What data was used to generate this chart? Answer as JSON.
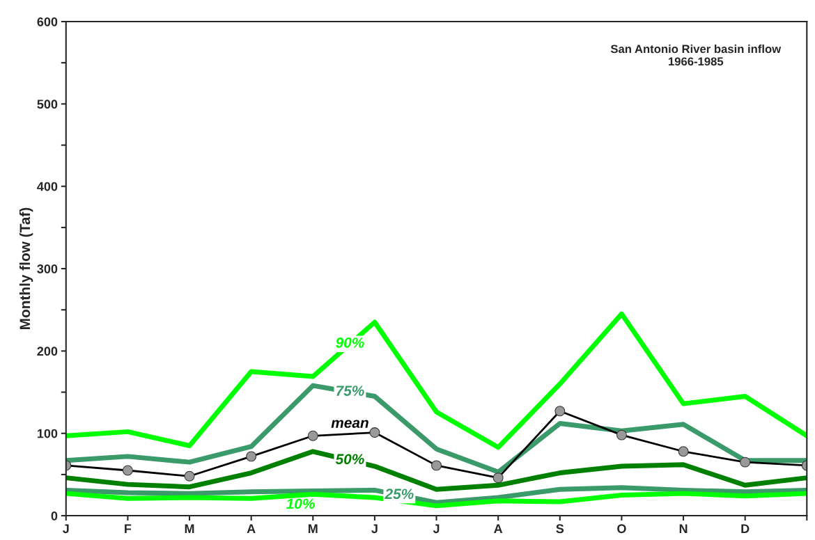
{
  "chart_data": {
    "type": "line",
    "title": "San Antonio River basin inflow\n1966-1985",
    "ylabel": "Monthly flow (Taf)",
    "categories": [
      "J",
      "F",
      "M",
      "A",
      "M",
      "J",
      "J",
      "A",
      "S",
      "O",
      "N",
      "D",
      null
    ],
    "series": [
      {
        "name": "90%",
        "color": "#00ff00",
        "marker": "none",
        "values": [
          97,
          102,
          85,
          175,
          169,
          235,
          126,
          83,
          160,
          245,
          136,
          145,
          97
        ]
      },
      {
        "name": "75%",
        "color": "#3a9a6a",
        "marker": "none",
        "values": [
          67,
          72,
          65,
          84,
          158,
          145,
          81,
          53,
          112,
          103,
          111,
          67,
          67
        ]
      },
      {
        "name": "mean",
        "color": "#000000",
        "marker": "circle",
        "values": [
          61,
          55,
          48,
          72,
          97,
          101,
          61,
          46,
          127,
          98,
          78,
          65,
          61
        ]
      },
      {
        "name": "50%",
        "color": "#008000",
        "marker": "none",
        "values": [
          46,
          38,
          35,
          52,
          78,
          60,
          32,
          37,
          52,
          60,
          62,
          37,
          46
        ]
      },
      {
        "name": "25%",
        "color": "#3a9a6a",
        "marker": "none",
        "values": [
          31,
          28,
          27,
          29,
          30,
          31,
          16,
          22,
          32,
          34,
          31,
          29,
          31
        ]
      },
      {
        "name": "10%",
        "color": "#00ff00",
        "marker": "none",
        "values": [
          27,
          21,
          22,
          21,
          26,
          22,
          12,
          18,
          17,
          25,
          27,
          24,
          27
        ]
      }
    ],
    "ylim": [
      0,
      600
    ],
    "yticks": [
      0,
      {
        "value": 50,
        "label": null
      },
      100,
      {
        "value": 150,
        "label": null
      },
      200,
      {
        "value": 250,
        "label": null
      },
      300,
      {
        "value": 350,
        "label": null
      },
      400,
      {
        "value": 450,
        "label": null
      },
      500,
      {
        "value": 550,
        "label": null
      },
      600
    ],
    "grid": false,
    "legend": false
  }
}
